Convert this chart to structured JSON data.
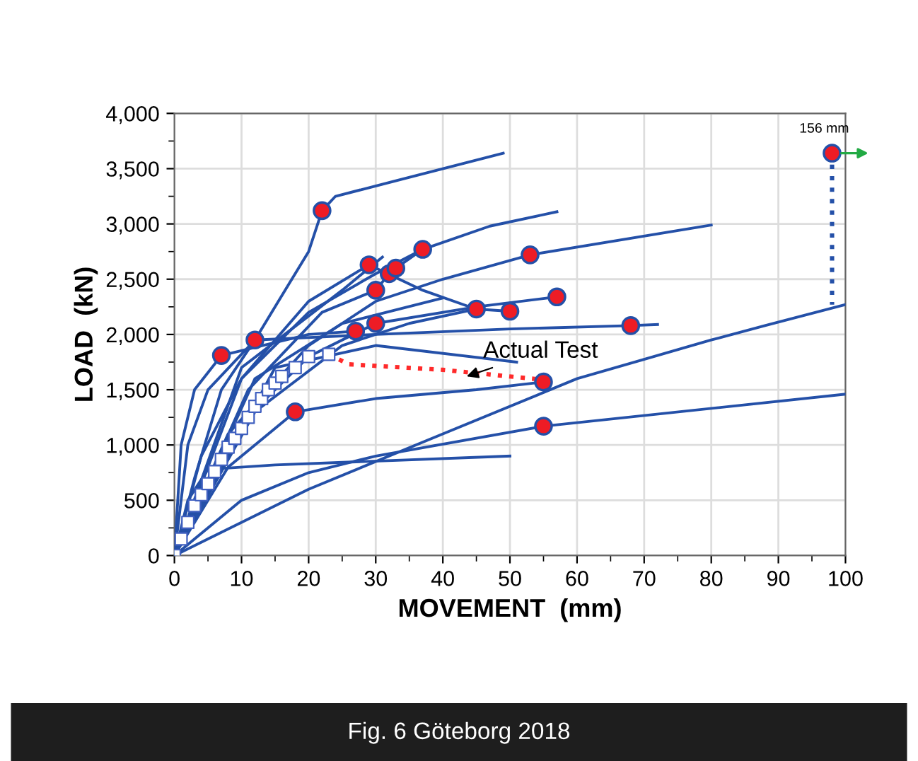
{
  "chart_data": {
    "type": "line",
    "xlabel": "MOVEMENT  (mm)",
    "ylabel": "LOAD  (kN)",
    "xlim": [
      0,
      100
    ],
    "ylim": [
      0,
      4000
    ],
    "xticks": [
      0,
      10,
      20,
      30,
      40,
      50,
      60,
      70,
      80,
      90,
      100
    ],
    "yticks": [
      0,
      500,
      {
        "value": 1000,
        "label": "1,000"
      },
      {
        "value": 1500,
        "label": "1,500"
      },
      {
        "value": 2000,
        "label": "2,000"
      },
      {
        "value": 2500,
        "label": "2,500"
      },
      {
        "value": 3000,
        "label": "3,000"
      },
      {
        "value": 3500,
        "label": "3,500"
      },
      {
        "value": 4000,
        "label": "4,000"
      }
    ],
    "grid": true,
    "line_style": "solid",
    "marker": "none",
    "series": [
      {
        "color": "#2450a8",
        "x": [
          0,
          3,
          7,
          12,
          15,
          17,
          20,
          22,
          24,
          49
        ],
        "values": [
          0,
          700,
          1500,
          1950,
          2250,
          2450,
          2750,
          3120,
          3250,
          3640
        ]
      },
      {
        "color": "#2450a8",
        "x": [
          0,
          4,
          10,
          20,
          30,
          37,
          47,
          57
        ],
        "values": [
          0,
          900,
          1600,
          2200,
          2550,
          2770,
          2980,
          3110
        ]
      },
      {
        "color": "#2450a8",
        "x": [
          0,
          8,
          20,
          30,
          40,
          53,
          80
        ],
        "values": [
          0,
          1100,
          1900,
          2300,
          2500,
          2720,
          2990
        ]
      },
      {
        "color": "#2450a8",
        "x": [
          0,
          2,
          5,
          12,
          30,
          50,
          68,
          72
        ],
        "values": [
          0,
          1000,
          1500,
          1950,
          2000,
          2050,
          2080,
          2090
        ]
      },
      {
        "color": "#2450a8",
        "x": [
          0,
          10,
          20,
          30,
          45,
          57
        ],
        "values": [
          0,
          1200,
          1800,
          2100,
          2250,
          2340
        ]
      },
      {
        "color": "#2450a8",
        "x": [
          0,
          12,
          25,
          35,
          45,
          50
        ],
        "values": [
          0,
          1300,
          1900,
          2100,
          2230,
          2210
        ]
      },
      {
        "color": "#2450a8",
        "x": [
          0,
          1,
          3,
          7,
          20,
          27
        ],
        "values": [
          0,
          1000,
          1500,
          1810,
          2000,
          2030
        ]
      },
      {
        "color": "#2450a8",
        "x": [
          0,
          10,
          20,
          29,
          37,
          44
        ],
        "values": [
          0,
          1600,
          2300,
          2630,
          2400,
          2250
        ]
      },
      {
        "color": "#2450a8",
        "x": [
          0,
          11,
          22,
          30,
          32,
          33,
          37
        ],
        "values": [
          0,
          1500,
          2200,
          2400,
          2550,
          2600,
          2770
        ]
      },
      {
        "color": "#2450a8",
        "x": [
          0,
          8,
          18,
          30,
          45,
          55
        ],
        "values": [
          0,
          800,
          1300,
          1420,
          1500,
          1570
        ]
      },
      {
        "color": "#2450a8",
        "x": [
          0,
          2,
          5,
          15,
          50
        ],
        "values": [
          0,
          500,
          780,
          820,
          900
        ]
      },
      {
        "color": "#2450a8",
        "x": [
          0,
          20,
          40,
          60,
          80,
          88,
          100
        ],
        "values": [
          0,
          600,
          1100,
          1600,
          1950,
          2080,
          2270
        ]
      },
      {
        "color": "#2450a8",
        "x": [
          0,
          10,
          20,
          30,
          55,
          100
        ],
        "values": [
          0,
          500,
          750,
          900,
          1170,
          1460
        ]
      },
      {
        "color": "#2450a8",
        "x": [
          0,
          12,
          25,
          40
        ],
        "values": [
          0,
          1600,
          2100,
          2330
        ]
      },
      {
        "color": "#2450a8",
        "x": [
          0,
          10,
          25,
          31
        ],
        "values": [
          0,
          1700,
          2400,
          2700
        ]
      },
      {
        "color": "#2450a8",
        "x": [
          0,
          15,
          30,
          51
        ],
        "values": [
          0,
          1700,
          1900,
          1750
        ]
      },
      {
        "color": "#2450a8",
        "x": [
          98,
          98
        ],
        "values": [
          3640,
          2270
        ],
        "line_style": "dotted"
      },
      {
        "color": "#ff2a2a",
        "x": [
          23,
          26,
          40,
          55
        ],
        "values": [
          1820,
          1730,
          1680,
          1590
        ],
        "line_style": "dotted"
      },
      {
        "type": "scatter",
        "color": "#ffffff",
        "marker": "square",
        "x": [
          0,
          1,
          2,
          3,
          4,
          5,
          6,
          7,
          8,
          9,
          10,
          11,
          12,
          13,
          14,
          15,
          16,
          18,
          20,
          23
        ],
        "values": [
          0,
          150,
          300,
          450,
          550,
          650,
          760,
          870,
          980,
          1060,
          1150,
          1250,
          1350,
          1420,
          1500,
          1560,
          1620,
          1700,
          1800,
          1820
        ]
      },
      {
        "type": "scatter",
        "color": "#ee1c25",
        "marker": "circle",
        "x": [
          22,
          12,
          7,
          29,
          32,
          33,
          37,
          30,
          53,
          45,
          50,
          57,
          27,
          30,
          68,
          18,
          55,
          55,
          98
        ],
        "values": [
          3120,
          1950,
          1810,
          2630,
          2550,
          2600,
          2770,
          2400,
          2720,
          2230,
          2210,
          2340,
          2030,
          2100,
          2080,
          1300,
          1570,
          1170,
          3640
        ]
      }
    ],
    "annotations": [
      {
        "text": "Actual Test",
        "x": 43,
        "y": 1610
      },
      {
        "text": "156 mm",
        "x": 98,
        "y": 3640
      },
      "Fig. 6 Göteborg 2018"
    ]
  }
}
